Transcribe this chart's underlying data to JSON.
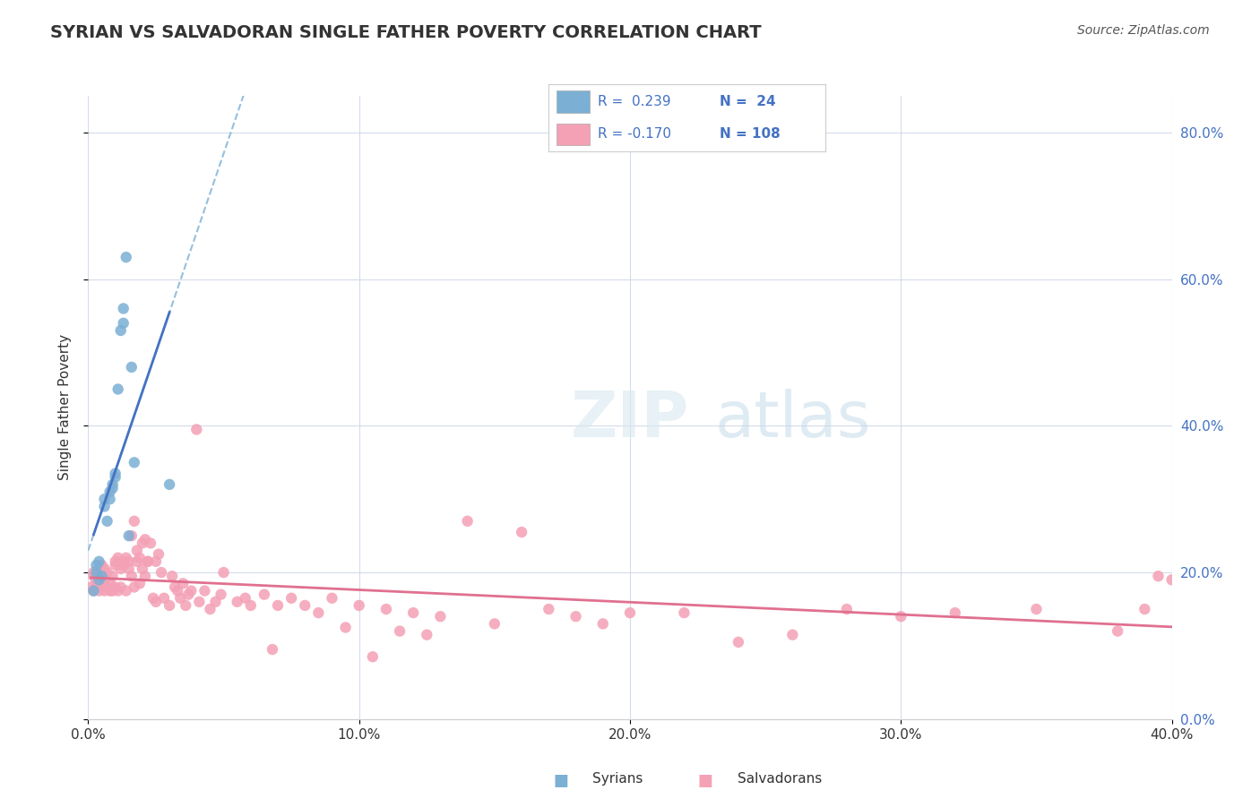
{
  "title": "SYRIAN VS SALVADORAN SINGLE FATHER POVERTY CORRELATION CHART",
  "source": "Source: ZipAtlas.com",
  "xlabel_label": "",
  "ylabel_label": "Single Father Poverty",
  "xlim": [
    0.0,
    0.4
  ],
  "ylim": [
    0.0,
    0.85
  ],
  "xticks": [
    0.0,
    0.1,
    0.2,
    0.3,
    0.4
  ],
  "yticks": [
    0.0,
    0.2,
    0.4,
    0.6,
    0.8
  ],
  "ytick_labels_right": [
    "0.0%",
    "20.0%",
    "40.0%",
    "60.0%",
    "80.0%"
  ],
  "xtick_labels": [
    "0.0%",
    "10.0%",
    "20.0%",
    "30.0%",
    "40.0%"
  ],
  "legend_items": [
    {
      "color": "#a8c4e0",
      "label": "R =  0.239   N =  24"
    },
    {
      "color": "#f4a7b9",
      "label": "R = -0.170   N = 108"
    }
  ],
  "syrian_color": "#7bafd4",
  "salvadoran_color": "#f4a0b5",
  "syrian_line_color": "#4472c4",
  "salvadoran_line_color": "#e07090",
  "dashed_line_color": "#7bafd4",
  "background_color": "#ffffff",
  "grid_color": "#d0d8e8",
  "watermark": "ZIPatlas",
  "syrian_R": 0.239,
  "syrian_N": 24,
  "salvadoran_R": -0.17,
  "salvadoran_N": 108,
  "syrian_x": [
    0.002,
    0.003,
    0.003,
    0.004,
    0.004,
    0.005,
    0.006,
    0.006,
    0.007,
    0.008,
    0.008,
    0.009,
    0.009,
    0.01,
    0.01,
    0.011,
    0.012,
    0.013,
    0.013,
    0.014,
    0.015,
    0.016,
    0.017,
    0.03
  ],
  "syrian_y": [
    0.175,
    0.2,
    0.21,
    0.19,
    0.215,
    0.195,
    0.29,
    0.3,
    0.27,
    0.31,
    0.3,
    0.32,
    0.315,
    0.33,
    0.335,
    0.45,
    0.53,
    0.54,
    0.56,
    0.63,
    0.25,
    0.48,
    0.35,
    0.32
  ],
  "salvadoran_x": [
    0.001,
    0.002,
    0.002,
    0.002,
    0.003,
    0.003,
    0.003,
    0.004,
    0.004,
    0.004,
    0.005,
    0.005,
    0.005,
    0.006,
    0.006,
    0.006,
    0.007,
    0.007,
    0.008,
    0.008,
    0.009,
    0.009,
    0.01,
    0.01,
    0.01,
    0.011,
    0.011,
    0.012,
    0.012,
    0.013,
    0.013,
    0.014,
    0.014,
    0.015,
    0.015,
    0.016,
    0.016,
    0.017,
    0.017,
    0.018,
    0.018,
    0.019,
    0.019,
    0.02,
    0.02,
    0.021,
    0.021,
    0.022,
    0.022,
    0.023,
    0.024,
    0.025,
    0.025,
    0.026,
    0.027,
    0.028,
    0.03,
    0.031,
    0.032,
    0.033,
    0.034,
    0.035,
    0.036,
    0.037,
    0.038,
    0.04,
    0.041,
    0.043,
    0.045,
    0.047,
    0.049,
    0.05,
    0.055,
    0.058,
    0.06,
    0.065,
    0.068,
    0.07,
    0.075,
    0.08,
    0.085,
    0.09,
    0.095,
    0.1,
    0.105,
    0.11,
    0.115,
    0.12,
    0.125,
    0.13,
    0.14,
    0.15,
    0.16,
    0.17,
    0.18,
    0.19,
    0.2,
    0.22,
    0.24,
    0.26,
    0.28,
    0.3,
    0.32,
    0.35,
    0.38,
    0.39,
    0.395,
    0.4
  ],
  "salvadoran_y": [
    0.18,
    0.175,
    0.195,
    0.2,
    0.185,
    0.19,
    0.2,
    0.175,
    0.185,
    0.205,
    0.18,
    0.195,
    0.21,
    0.175,
    0.19,
    0.205,
    0.18,
    0.2,
    0.175,
    0.185,
    0.175,
    0.195,
    0.18,
    0.21,
    0.215,
    0.175,
    0.22,
    0.18,
    0.205,
    0.21,
    0.215,
    0.175,
    0.22,
    0.205,
    0.215,
    0.25,
    0.195,
    0.27,
    0.18,
    0.215,
    0.23,
    0.185,
    0.22,
    0.205,
    0.24,
    0.195,
    0.245,
    0.215,
    0.215,
    0.24,
    0.165,
    0.215,
    0.16,
    0.225,
    0.2,
    0.165,
    0.155,
    0.195,
    0.18,
    0.175,
    0.165,
    0.185,
    0.155,
    0.17,
    0.175,
    0.395,
    0.16,
    0.175,
    0.15,
    0.16,
    0.17,
    0.2,
    0.16,
    0.165,
    0.155,
    0.17,
    0.095,
    0.155,
    0.165,
    0.155,
    0.145,
    0.165,
    0.125,
    0.155,
    0.085,
    0.15,
    0.12,
    0.145,
    0.115,
    0.14,
    0.27,
    0.13,
    0.255,
    0.15,
    0.14,
    0.13,
    0.145,
    0.145,
    0.105,
    0.115,
    0.15,
    0.14,
    0.145,
    0.15,
    0.12,
    0.15,
    0.195,
    0.19
  ]
}
